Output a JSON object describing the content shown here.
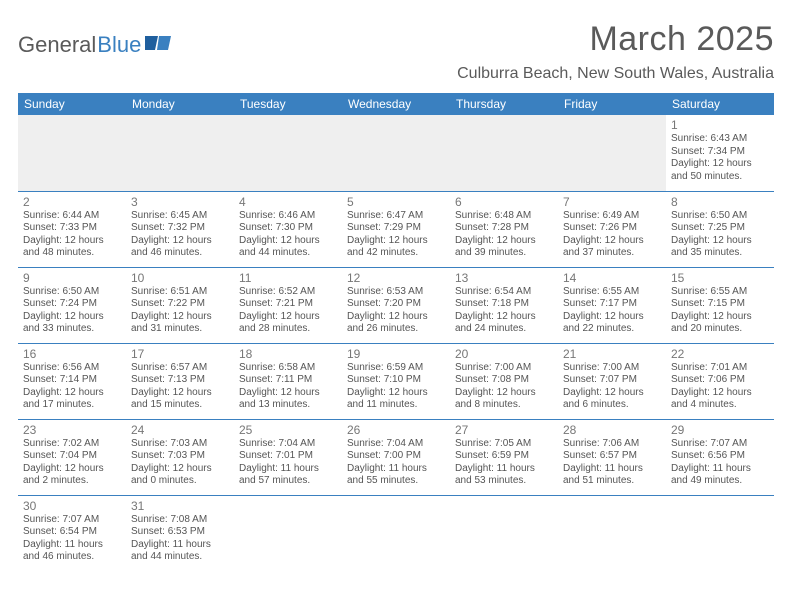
{
  "logo": {
    "part1": "General",
    "part2": "Blue",
    "accent": "#3a80c0",
    "gray": "#5a5a5a"
  },
  "title": "March 2025",
  "location": "Culburra Beach, New South Wales, Australia",
  "columns": [
    "Sunday",
    "Monday",
    "Tuesday",
    "Wednesday",
    "Thursday",
    "Friday",
    "Saturday"
  ],
  "colors": {
    "header_bg": "#3a80c0",
    "header_fg": "#ffffff",
    "cell_border": "#3a80c0",
    "empty_bg": "#efefef",
    "text": "#555555",
    "daynum": "#777777"
  },
  "weeks": [
    [
      null,
      null,
      null,
      null,
      null,
      null,
      {
        "n": "1",
        "sr": "Sunrise: 6:43 AM",
        "ss": "Sunset: 7:34 PM",
        "d1": "Daylight: 12 hours",
        "d2": "and 50 minutes."
      }
    ],
    [
      {
        "n": "2",
        "sr": "Sunrise: 6:44 AM",
        "ss": "Sunset: 7:33 PM",
        "d1": "Daylight: 12 hours",
        "d2": "and 48 minutes."
      },
      {
        "n": "3",
        "sr": "Sunrise: 6:45 AM",
        "ss": "Sunset: 7:32 PM",
        "d1": "Daylight: 12 hours",
        "d2": "and 46 minutes."
      },
      {
        "n": "4",
        "sr": "Sunrise: 6:46 AM",
        "ss": "Sunset: 7:30 PM",
        "d1": "Daylight: 12 hours",
        "d2": "and 44 minutes."
      },
      {
        "n": "5",
        "sr": "Sunrise: 6:47 AM",
        "ss": "Sunset: 7:29 PM",
        "d1": "Daylight: 12 hours",
        "d2": "and 42 minutes."
      },
      {
        "n": "6",
        "sr": "Sunrise: 6:48 AM",
        "ss": "Sunset: 7:28 PM",
        "d1": "Daylight: 12 hours",
        "d2": "and 39 minutes."
      },
      {
        "n": "7",
        "sr": "Sunrise: 6:49 AM",
        "ss": "Sunset: 7:26 PM",
        "d1": "Daylight: 12 hours",
        "d2": "and 37 minutes."
      },
      {
        "n": "8",
        "sr": "Sunrise: 6:50 AM",
        "ss": "Sunset: 7:25 PM",
        "d1": "Daylight: 12 hours",
        "d2": "and 35 minutes."
      }
    ],
    [
      {
        "n": "9",
        "sr": "Sunrise: 6:50 AM",
        "ss": "Sunset: 7:24 PM",
        "d1": "Daylight: 12 hours",
        "d2": "and 33 minutes."
      },
      {
        "n": "10",
        "sr": "Sunrise: 6:51 AM",
        "ss": "Sunset: 7:22 PM",
        "d1": "Daylight: 12 hours",
        "d2": "and 31 minutes."
      },
      {
        "n": "11",
        "sr": "Sunrise: 6:52 AM",
        "ss": "Sunset: 7:21 PM",
        "d1": "Daylight: 12 hours",
        "d2": "and 28 minutes."
      },
      {
        "n": "12",
        "sr": "Sunrise: 6:53 AM",
        "ss": "Sunset: 7:20 PM",
        "d1": "Daylight: 12 hours",
        "d2": "and 26 minutes."
      },
      {
        "n": "13",
        "sr": "Sunrise: 6:54 AM",
        "ss": "Sunset: 7:18 PM",
        "d1": "Daylight: 12 hours",
        "d2": "and 24 minutes."
      },
      {
        "n": "14",
        "sr": "Sunrise: 6:55 AM",
        "ss": "Sunset: 7:17 PM",
        "d1": "Daylight: 12 hours",
        "d2": "and 22 minutes."
      },
      {
        "n": "15",
        "sr": "Sunrise: 6:55 AM",
        "ss": "Sunset: 7:15 PM",
        "d1": "Daylight: 12 hours",
        "d2": "and 20 minutes."
      }
    ],
    [
      {
        "n": "16",
        "sr": "Sunrise: 6:56 AM",
        "ss": "Sunset: 7:14 PM",
        "d1": "Daylight: 12 hours",
        "d2": "and 17 minutes."
      },
      {
        "n": "17",
        "sr": "Sunrise: 6:57 AM",
        "ss": "Sunset: 7:13 PM",
        "d1": "Daylight: 12 hours",
        "d2": "and 15 minutes."
      },
      {
        "n": "18",
        "sr": "Sunrise: 6:58 AM",
        "ss": "Sunset: 7:11 PM",
        "d1": "Daylight: 12 hours",
        "d2": "and 13 minutes."
      },
      {
        "n": "19",
        "sr": "Sunrise: 6:59 AM",
        "ss": "Sunset: 7:10 PM",
        "d1": "Daylight: 12 hours",
        "d2": "and 11 minutes."
      },
      {
        "n": "20",
        "sr": "Sunrise: 7:00 AM",
        "ss": "Sunset: 7:08 PM",
        "d1": "Daylight: 12 hours",
        "d2": "and 8 minutes."
      },
      {
        "n": "21",
        "sr": "Sunrise: 7:00 AM",
        "ss": "Sunset: 7:07 PM",
        "d1": "Daylight: 12 hours",
        "d2": "and 6 minutes."
      },
      {
        "n": "22",
        "sr": "Sunrise: 7:01 AM",
        "ss": "Sunset: 7:06 PM",
        "d1": "Daylight: 12 hours",
        "d2": "and 4 minutes."
      }
    ],
    [
      {
        "n": "23",
        "sr": "Sunrise: 7:02 AM",
        "ss": "Sunset: 7:04 PM",
        "d1": "Daylight: 12 hours",
        "d2": "and 2 minutes."
      },
      {
        "n": "24",
        "sr": "Sunrise: 7:03 AM",
        "ss": "Sunset: 7:03 PM",
        "d1": "Daylight: 12 hours",
        "d2": "and 0 minutes."
      },
      {
        "n": "25",
        "sr": "Sunrise: 7:04 AM",
        "ss": "Sunset: 7:01 PM",
        "d1": "Daylight: 11 hours",
        "d2": "and 57 minutes."
      },
      {
        "n": "26",
        "sr": "Sunrise: 7:04 AM",
        "ss": "Sunset: 7:00 PM",
        "d1": "Daylight: 11 hours",
        "d2": "and 55 minutes."
      },
      {
        "n": "27",
        "sr": "Sunrise: 7:05 AM",
        "ss": "Sunset: 6:59 PM",
        "d1": "Daylight: 11 hours",
        "d2": "and 53 minutes."
      },
      {
        "n": "28",
        "sr": "Sunrise: 7:06 AM",
        "ss": "Sunset: 6:57 PM",
        "d1": "Daylight: 11 hours",
        "d2": "and 51 minutes."
      },
      {
        "n": "29",
        "sr": "Sunrise: 7:07 AM",
        "ss": "Sunset: 6:56 PM",
        "d1": "Daylight: 11 hours",
        "d2": "and 49 minutes."
      }
    ],
    [
      {
        "n": "30",
        "sr": "Sunrise: 7:07 AM",
        "ss": "Sunset: 6:54 PM",
        "d1": "Daylight: 11 hours",
        "d2": "and 46 minutes."
      },
      {
        "n": "31",
        "sr": "Sunrise: 7:08 AM",
        "ss": "Sunset: 6:53 PM",
        "d1": "Daylight: 11 hours",
        "d2": "and 44 minutes."
      },
      null,
      null,
      null,
      null,
      null
    ]
  ]
}
